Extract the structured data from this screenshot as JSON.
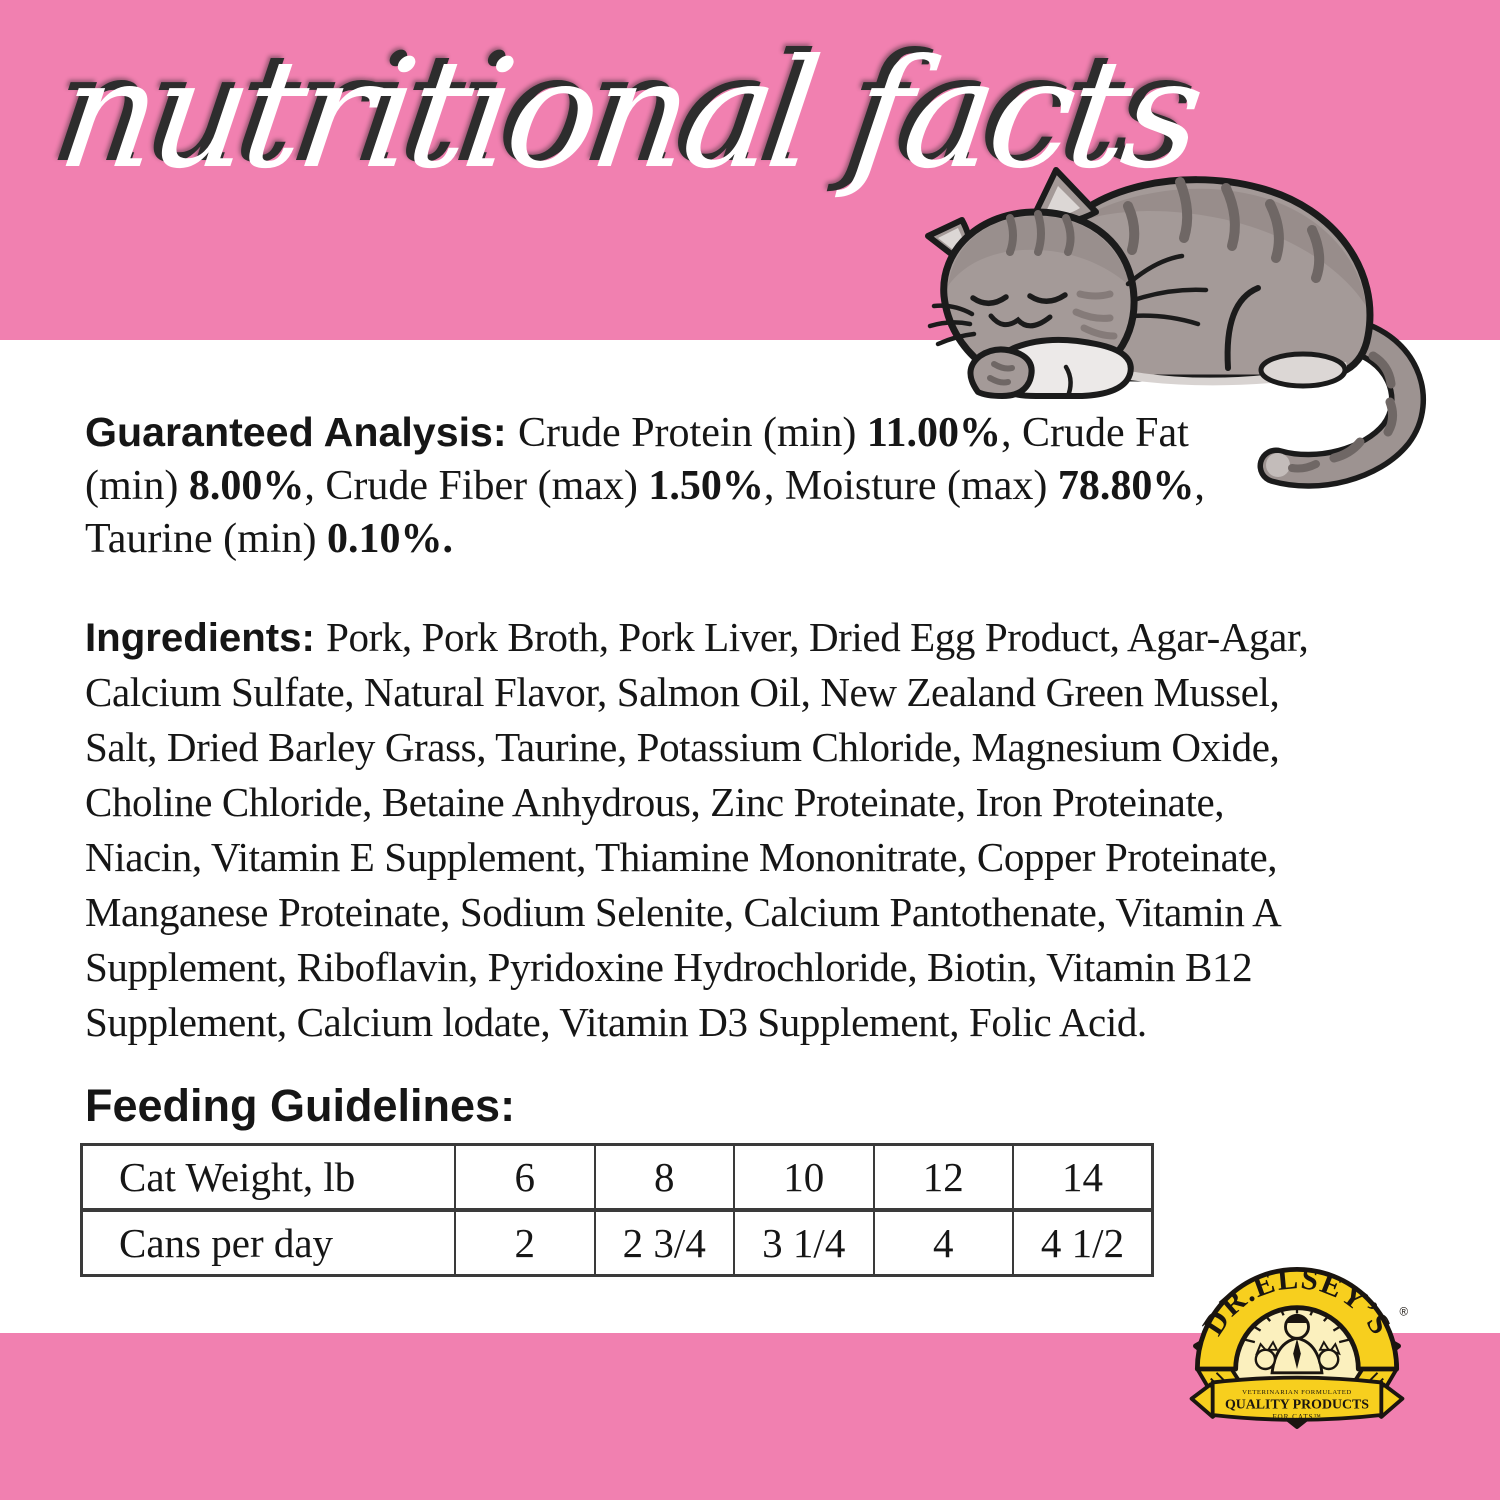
{
  "header": {
    "title": "nutritional facts"
  },
  "guaranteed_analysis": {
    "lines": [
      {
        "segments": [
          {
            "s": "h",
            "t": "Guaranteed Analysis: "
          },
          {
            "s": "r",
            "t": "Crude Protein (min) "
          },
          {
            "s": "b",
            "t": "11.00%"
          },
          {
            "s": "r",
            "t": ", Crude Fat"
          }
        ]
      },
      {
        "segments": [
          {
            "s": "r",
            "t": "(min) "
          },
          {
            "s": "b",
            "t": "8.00%"
          },
          {
            "s": "r",
            "t": ", Crude Fiber (max) "
          },
          {
            "s": "b",
            "t": "1.50%"
          },
          {
            "s": "r",
            "t": ", Moisture (max) "
          },
          {
            "s": "b",
            "t": "78.80%"
          },
          {
            "s": "r",
            "t": ","
          }
        ]
      },
      {
        "segments": [
          {
            "s": "r",
            "t": "Taurine (min) "
          },
          {
            "s": "b",
            "t": "0.10%."
          }
        ]
      }
    ]
  },
  "ingredients": {
    "lines": [
      {
        "segments": [
          {
            "s": "h",
            "t": "Ingredients: "
          },
          {
            "s": "r",
            "t": "Pork, Pork Broth, Pork Liver, Dried Egg Product, Agar-Agar,"
          }
        ]
      },
      {
        "segments": [
          {
            "s": "r",
            "t": "Calcium Sulfate, Natural Flavor, Salmon Oil, New Zealand Green Mussel,"
          }
        ]
      },
      {
        "segments": [
          {
            "s": "r",
            "t": "Salt, Dried Barley Grass, Taurine, Potassium Chloride, Magnesium Oxide,"
          }
        ]
      },
      {
        "segments": [
          {
            "s": "r",
            "t": "Choline Chloride, Betaine Anhydrous, Zinc Proteinate, Iron Proteinate,"
          }
        ]
      },
      {
        "segments": [
          {
            "s": "r",
            "t": "Niacin, Vitamin E Supplement, Thiamine Mononitrate, Copper Proteinate,"
          }
        ]
      },
      {
        "segments": [
          {
            "s": "r",
            "t": "Manganese Proteinate, Sodium Selenite, Calcium Pantothenate, Vitamin A"
          }
        ]
      },
      {
        "segments": [
          {
            "s": "r",
            "t": "Supplement, Riboflavin, Pyridoxine Hydrochloride, Biotin, Vitamin B12"
          }
        ]
      },
      {
        "segments": [
          {
            "s": "r",
            "t": "Supplement, Calcium lodate, Vitamin D3 Supplement, Folic Acid."
          }
        ]
      }
    ]
  },
  "feeding_guidelines": {
    "heading": "Feeding Guidelines:",
    "table": {
      "rows": [
        {
          "label": "Cat Weight, lb",
          "values": [
            "6",
            "8",
            "10",
            "12",
            "14"
          ]
        },
        {
          "label": "Cans per day",
          "values": [
            "2",
            "2 3/4",
            "3 1/4",
            "4",
            "4 1/2"
          ]
        }
      ]
    }
  },
  "logo": {
    "brand": "DR.ELSEY’S",
    "registered_mark": "®",
    "ribbon_line1": "VETERINARIAN FORMULATED",
    "ribbon_line2": "QUALITY PRODUCTS",
    "ribbon_line3": "FOR CATS™"
  },
  "illustrations": {
    "cat": "sleeping-gray-tabby-cat",
    "logo_badge": "dr-elseys-yellow-crest"
  },
  "colors": {
    "band_pink": "#F180B0",
    "text": "#161616",
    "title_white": "#FFFFFF",
    "title_shadow": "#2D2D2D",
    "table_border": "#3A3A3A",
    "logo_yellow": "#F7CF1E",
    "logo_pale": "#FBF0BE",
    "cat_gray": "#A49A98",
    "cat_stripe": "#6F6765"
  }
}
